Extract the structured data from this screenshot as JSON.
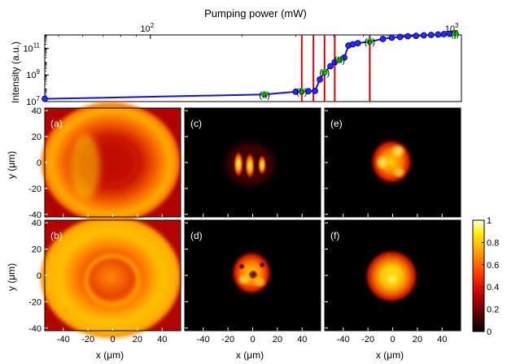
{
  "chart_data": [
    {
      "type": "line",
      "title": "Pumping power (mW)",
      "xlabel": "Pumping power (mW)",
      "ylabel": "Intensity (a.u.)",
      "xscale": "log",
      "yscale": "log",
      "xlim": [
        45,
        1050
      ],
      "ylim": [
        10000000.0,
        1000000000000.0
      ],
      "x_ticks": [
        {
          "value": 100,
          "base": "10",
          "exp": "2"
        },
        {
          "value": 1000,
          "base": "10",
          "exp": "3"
        }
      ],
      "y_ticks": [
        {
          "value": 10000000.0,
          "base": "10",
          "exp": "7"
        },
        {
          "value": 1000000000.0,
          "base": "10",
          "exp": "9"
        },
        {
          "value": 100000000000.0,
          "base": "10",
          "exp": "11"
        }
      ],
      "series": [
        {
          "name": "intensity",
          "color": "#1010e0",
          "marker_color": "#2a2aff",
          "x": [
            45,
            237,
            300,
            314,
            330,
            347,
            360,
            373,
            390,
            403,
            418,
            433,
            447,
            462,
            480,
            525,
            580,
            620,
            660,
            700,
            745,
            790,
            835,
            880,
            920,
            960,
            1000
          ],
          "y": [
            16000000.0,
            34000000.0,
            55000000.0,
            58000000.0,
            60000000.0,
            63000000.0,
            450000000.0,
            1600000000.0,
            4500000000.0,
            9000000000.0,
            14000000000.0,
            20000000000.0,
            160000000000.0,
            200000000000.0,
            240000000000.0,
            320000000000.0,
            500000000000.0,
            620000000000.0,
            700000000000.0,
            800000000000.0,
            860000000000.0,
            930000000000.0,
            1000000000000.0,
            1080000000000.0,
            1150000000000.0,
            1220000000000.0,
            1300000000000.0
          ]
        }
      ],
      "markers": [
        {
          "label": "(a)",
          "x": 237,
          "y": 34000000.0,
          "color": "#00cc00"
        },
        {
          "label": "(b)",
          "x": 314,
          "y": 58000000.0,
          "color": "#00cc00"
        },
        {
          "label": "(c)",
          "x": 373,
          "y": 1600000000.0,
          "color": "#00cc00"
        },
        {
          "label": "(d)",
          "x": 418,
          "y": 14000000000.0,
          "color": "#00cc00"
        },
        {
          "label": "(e)",
          "x": 525,
          "y": 320000000000.0,
          "color": "#00cc00"
        },
        {
          "label": "(f)",
          "x": 1000,
          "y": 1300000000000.0,
          "color": "#00cc00"
        }
      ],
      "threshold_lines": {
        "color": "#e00000",
        "x": [
          314,
          343,
          373,
          403,
          525
        ]
      }
    },
    {
      "type": "heatmap",
      "xlabel": "x (μm)",
      "ylabel": "y (μm)",
      "xlim": [
        -55,
        55
      ],
      "ylim": [
        -42,
        42
      ],
      "x_ticks": [
        -40,
        -20,
        0,
        20,
        40
      ],
      "y_ticks": [
        -40,
        -20,
        0,
        20,
        40
      ],
      "colormap": "hot",
      "panels": [
        {
          "label": "(a)",
          "row": 0,
          "col": 0
        },
        {
          "label": "(c)",
          "row": 0,
          "col": 1
        },
        {
          "label": "(e)",
          "row": 0,
          "col": 2
        },
        {
          "label": "(b)",
          "row": 1,
          "col": 0
        },
        {
          "label": "(d)",
          "row": 1,
          "col": 1
        },
        {
          "label": "(f)",
          "row": 1,
          "col": 2
        }
      ],
      "colorbar": {
        "min": 0,
        "max": 1,
        "ticks": [
          "1",
          "0.8",
          "0.6",
          "0.4",
          "0.2",
          "0"
        ]
      }
    }
  ]
}
